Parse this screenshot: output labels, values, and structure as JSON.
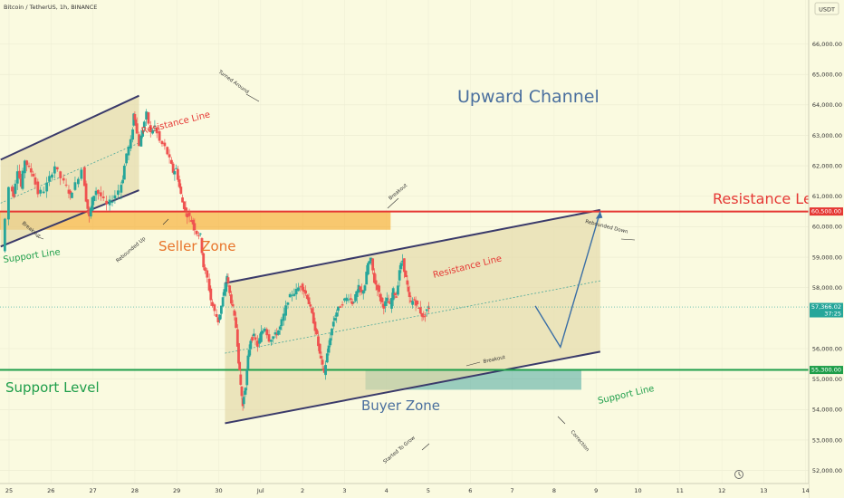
{
  "header": {
    "symbol_title": "Bitcoin / TetherUS, 1h, BINANCE",
    "currency_badge": "USDT"
  },
  "chart_data": {
    "type": "candlestick",
    "title": "Bitcoin / TetherUS, 1h, BINANCE",
    "ylim": [
      51800,
      67000
    ],
    "yticks": [
      {
        "label": "66,000.00",
        "value": 66000
      },
      {
        "label": "65,000.00",
        "value": 65000
      },
      {
        "label": "64,000.00",
        "value": 64000
      },
      {
        "label": "63,000.00",
        "value": 63000
      },
      {
        "label": "62,000.00",
        "value": 62000
      },
      {
        "label": "61,000.00",
        "value": 61000
      },
      {
        "label": "60,000.00",
        "value": 60000
      },
      {
        "label": "59,000.00",
        "value": 59000
      },
      {
        "label": "58,000.00",
        "value": 58000
      },
      {
        "label": "56,000.00",
        "value": 56000
      },
      {
        "label": "55,000.00",
        "value": 55000
      },
      {
        "label": "54,000.00",
        "value": 54000
      },
      {
        "label": "53,000.00",
        "value": 53000
      },
      {
        "label": "52,000.00",
        "value": 52000
      }
    ],
    "xticks": [
      "25",
      "26",
      "27",
      "28",
      "29",
      "30",
      "Jul",
      "2",
      "3",
      "4",
      "5",
      "6",
      "7",
      "8",
      "9",
      "10",
      "11",
      "12",
      "13",
      "14"
    ],
    "price_markers": [
      {
        "label": "60,500.00",
        "value": 60500,
        "color": "#e53935"
      },
      {
        "label": "57,366.02",
        "sub": "37:25",
        "value": 57366,
        "color": "#26a69a"
      },
      {
        "label": "55,300.00",
        "value": 55300,
        "color": "#1e9e4a"
      }
    ],
    "levels": [
      {
        "name": "Resistance Level",
        "value": 60500,
        "color": "#e53935"
      },
      {
        "name": "Support Level",
        "value": 55300,
        "color": "#1e9e4a"
      }
    ],
    "zones": [
      {
        "name": "Seller Zone",
        "from": 59900,
        "to": 60500
      },
      {
        "name": "Buyer Zone",
        "from": 54650,
        "to": 55300
      }
    ],
    "channels": [
      {
        "upper": [
          [
            -0.2,
            62200
          ],
          [
            3.1,
            64300
          ]
        ],
        "lower": [
          [
            -0.2,
            59350
          ],
          [
            3.1,
            61200
          ]
        ]
      },
      {
        "upper": [
          [
            5.15,
            58150
          ],
          [
            14.1,
            60550
          ]
        ],
        "lower": [
          [
            5.15,
            53550
          ],
          [
            14.1,
            55900
          ]
        ]
      }
    ],
    "projection": [
      [
        12.55,
        57400
      ],
      [
        13.15,
        56050
      ],
      [
        14.1,
        60500
      ]
    ],
    "annotations": [
      {
        "text": "Upward Channel"
      },
      {
        "text": "Resistance Level"
      },
      {
        "text": "Support Level"
      },
      {
        "text": "Seller Zone"
      },
      {
        "text": "Buyer Zone"
      },
      {
        "text": "Resistance Line"
      },
      {
        "text": "Support Line"
      },
      {
        "text": "Resistance Line"
      },
      {
        "text": "Support Line"
      },
      {
        "text": "Turned Around"
      },
      {
        "text": "Breakout"
      },
      {
        "text": "Rebounded Up"
      },
      {
        "text": "Breakout"
      },
      {
        "text": "Rebounded Down"
      },
      {
        "text": "Breakout"
      },
      {
        "text": "Started To Grow"
      },
      {
        "text": "Correction"
      }
    ],
    "price_path": [
      [
        -0.2,
        59200
      ],
      [
        0.15,
        61300
      ],
      [
        0.3,
        61050
      ],
      [
        0.5,
        61900
      ],
      [
        0.65,
        61300
      ],
      [
        0.85,
        62200
      ],
      [
        1.05,
        61900
      ],
      [
        1.25,
        61700
      ],
      [
        1.5,
        61100
      ],
      [
        1.8,
        61200
      ],
      [
        2.05,
        61600
      ],
      [
        2.3,
        62000
      ],
      [
        2.6,
        61600
      ],
      [
        2.85,
        61300
      ],
      [
        3.0,
        61000
      ],
      [
        3.3,
        61400
      ],
      [
        3.6,
        61900
      ],
      [
        3.75,
        60900
      ],
      [
        3.9,
        60300
      ],
      [
        4.05,
        60900
      ],
      [
        4.25,
        61200
      ],
      [
        4.5,
        61000
      ],
      [
        4.8,
        60700
      ],
      [
        5.05,
        60900
      ],
      [
        5.35,
        61200
      ],
      [
        5.5,
        61600
      ],
      [
        5.7,
        62400
      ],
      [
        5.9,
        62800
      ],
      [
        6.0,
        63700
      ],
      [
        6.1,
        63400
      ],
      [
        6.3,
        62700
      ],
      [
        6.45,
        63200
      ],
      [
        6.65,
        63700
      ],
      [
        6.85,
        63100
      ],
      [
        7.05,
        63300
      ],
      [
        7.3,
        62800
      ],
      [
        7.55,
        62600
      ],
      [
        7.75,
        62200
      ],
      [
        7.9,
        61800
      ],
      [
        8.05,
        61900
      ],
      [
        8.2,
        61300
      ],
      [
        8.35,
        60800
      ],
      [
        8.5,
        60500
      ],
      [
        8.7,
        60300
      ],
      [
        8.85,
        60100
      ],
      [
        9.05,
        59800
      ],
      [
        9.2,
        59700
      ],
      [
        9.35,
        58700
      ],
      [
        9.55,
        58300
      ],
      [
        9.7,
        57600
      ],
      [
        9.9,
        57200
      ],
      [
        10.05,
        56900
      ],
      [
        10.2,
        57400
      ],
      [
        10.35,
        57900
      ],
      [
        10.45,
        58400
      ],
      [
        10.6,
        57800
      ],
      [
        10.75,
        57300
      ],
      [
        10.9,
        56700
      ],
      [
        11.0,
        55600
      ],
      [
        11.1,
        54800
      ],
      [
        11.2,
        54100
      ],
      [
        11.35,
        54800
      ],
      [
        11.45,
        55700
      ],
      [
        11.6,
        56300
      ],
      [
        11.75,
        56400
      ],
      [
        11.95,
        56100
      ],
      [
        12.1,
        56500
      ],
      [
        12.3,
        56700
      ],
      [
        12.5,
        56300
      ],
      [
        12.7,
        56400
      ],
      [
        12.85,
        56500
      ],
      [
        13.0,
        56700
      ],
      [
        13.2,
        57100
      ],
      [
        13.4,
        57600
      ],
      [
        13.6,
        57800
      ],
      [
        13.8,
        57900
      ],
      [
        14.0,
        58100
      ],
      [
        14.15,
        57900
      ],
      [
        14.3,
        57700
      ],
      [
        14.45,
        57300
      ],
      [
        14.6,
        56900
      ],
      [
        14.75,
        56400
      ],
      [
        14.9,
        55800
      ],
      [
        15.0,
        55400
      ],
      [
        15.1,
        55200
      ],
      [
        15.25,
        55800
      ],
      [
        15.4,
        56400
      ],
      [
        15.55,
        56900
      ],
      [
        15.7,
        57200
      ],
      [
        15.9,
        57400
      ],
      [
        16.1,
        57600
      ],
      [
        16.3,
        57700
      ],
      [
        16.45,
        57500
      ],
      [
        16.6,
        57700
      ],
      [
        16.75,
        58000
      ],
      [
        16.9,
        57800
      ],
      [
        17.05,
        58100
      ],
      [
        17.2,
        58800
      ],
      [
        17.35,
        58900
      ],
      [
        17.5,
        58200
      ],
      [
        17.65,
        58000
      ],
      [
        17.8,
        57600
      ],
      [
        17.95,
        57400
      ],
      [
        18.1,
        57600
      ],
      [
        18.25,
        57400
      ],
      [
        18.4,
        57900
      ],
      [
        18.55,
        57700
      ],
      [
        18.7,
        58600
      ],
      [
        18.85,
        58900
      ],
      [
        19.0,
        58300
      ],
      [
        19.1,
        57800
      ],
      [
        19.25,
        57500
      ],
      [
        19.4,
        57600
      ],
      [
        19.55,
        57400
      ],
      [
        19.7,
        57200
      ],
      [
        19.85,
        57000
      ],
      [
        20.0,
        57300
      ],
      [
        20.05,
        57366
      ]
    ]
  },
  "colors": {
    "background": "#fafae0",
    "channel_fill": "#e3d8a8",
    "channel_line": "#3a3a6a",
    "bull": "#26a69a",
    "bear": "#ef5350",
    "seller_zone": "#f6a623",
    "buyer_zone": "#4aa8a0",
    "projection": "#3a6ea5",
    "label_blue": "#4a6f9e",
    "label_red": "#e53935",
    "label_orange": "#e8742a",
    "label_green": "#1e9e4a"
  }
}
